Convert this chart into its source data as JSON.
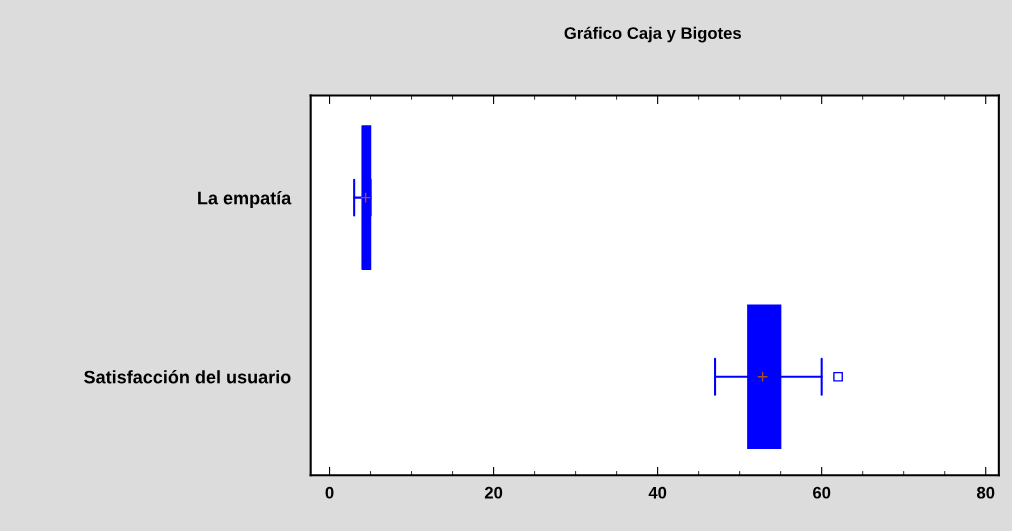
{
  "chart_data": {
    "type": "box",
    "title": "Gráfico Caja y Bigotes",
    "orientation": "horizontal",
    "categories": [
      "La empatía",
      "Satisfacción del usuario"
    ],
    "series": [
      {
        "color": "#0000ff",
        "boxes": [
          {
            "low": 3,
            "q1": 4,
            "median": 4,
            "q3": 5,
            "high": 5,
            "mean": 4.4
          },
          {
            "low": 47,
            "q1": 51,
            "median": 53,
            "q3": 55,
            "high": 60,
            "mean": 52.8,
            "outliers": [
              62
            ]
          }
        ]
      }
    ],
    "xlim": [
      -2.3,
      81.6
    ],
    "xticks": [
      0,
      20,
      40,
      60,
      80
    ],
    "grid": false,
    "legend": false
  }
}
